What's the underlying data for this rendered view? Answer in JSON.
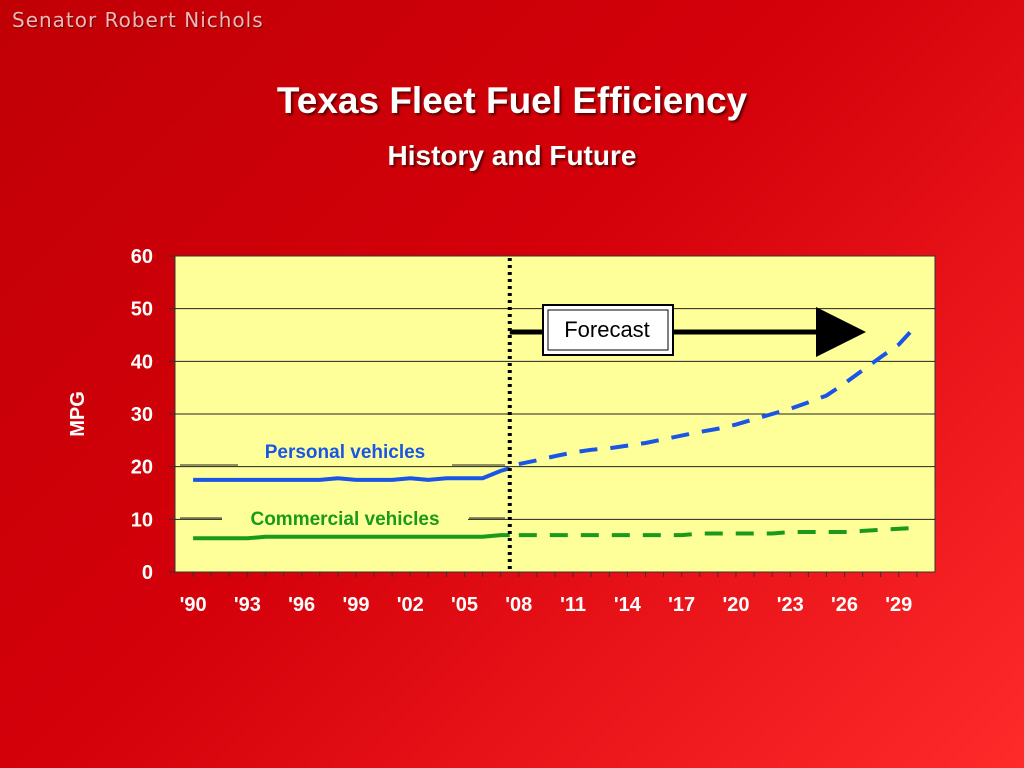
{
  "header": {
    "presenter": "Senator Robert Nichols"
  },
  "chart_data": {
    "type": "line",
    "title": "Texas Fleet Fuel Efficiency",
    "subtitle": "History and Future",
    "ylabel": "MPG",
    "xlabel": "",
    "ylim": [
      0,
      60
    ],
    "yticks": [
      0,
      10,
      20,
      30,
      40,
      50,
      60
    ],
    "xlim": [
      1989,
      2031
    ],
    "xtick_values": [
      1990,
      1993,
      1996,
      1999,
      2002,
      2005,
      2008,
      2011,
      2014,
      2017,
      2020,
      2023,
      2026,
      2029
    ],
    "xtick_labels": [
      "'90",
      "'93",
      "'96",
      "'99",
      "'02",
      "'05",
      "'08",
      "'11",
      "'14",
      "'17",
      "'20",
      "'23",
      "'26",
      "'29"
    ],
    "grid": true,
    "forecast_start": 2007.5,
    "forecast_label": "Forecast",
    "series": [
      {
        "name": "Personal vehicles",
        "color": "#1a55e6",
        "history": {
          "x": [
            1990,
            1991,
            1992,
            1993,
            1994,
            1995,
            1996,
            1997,
            1998,
            1999,
            2000,
            2001,
            2002,
            2003,
            2004,
            2005,
            2006,
            2007,
            2007.5
          ],
          "y": [
            17.5,
            17.5,
            17.5,
            17.5,
            17.5,
            17.5,
            17.5,
            17.5,
            17.8,
            17.5,
            17.5,
            17.5,
            17.8,
            17.5,
            17.8,
            17.8,
            17.8,
            19.2,
            19.7
          ]
        },
        "forecast": {
          "x": [
            2008,
            2009,
            2010,
            2011,
            2012,
            2013,
            2014,
            2015,
            2016,
            2017,
            2018,
            2019,
            2020,
            2021,
            2022,
            2023,
            2024,
            2025,
            2026,
            2027,
            2028,
            2029,
            2030
          ],
          "y": [
            20.5,
            21.2,
            22.0,
            22.7,
            23.2,
            23.5,
            24.0,
            24.5,
            25.2,
            25.9,
            26.6,
            27.2,
            28.0,
            29.0,
            30.0,
            31.0,
            32.2,
            33.5,
            35.8,
            38.3,
            40.8,
            43.2,
            46.9
          ]
        }
      },
      {
        "name": "Commercial vehicles",
        "color": "#1a9a1a",
        "history": {
          "x": [
            1990,
            1991,
            1992,
            1993,
            1994,
            1995,
            1996,
            1997,
            1998,
            1999,
            2000,
            2001,
            2002,
            2003,
            2004,
            2005,
            2006,
            2007,
            2007.5
          ],
          "y": [
            6.4,
            6.4,
            6.4,
            6.4,
            6.7,
            6.7,
            6.7,
            6.7,
            6.7,
            6.7,
            6.7,
            6.7,
            6.7,
            6.7,
            6.7,
            6.7,
            6.7,
            7.0,
            7.0
          ]
        },
        "forecast": {
          "x": [
            2008,
            2010,
            2012,
            2014,
            2016,
            2017,
            2018,
            2020,
            2022,
            2023,
            2024,
            2026,
            2027,
            2028,
            2030
          ],
          "y": [
            7.0,
            7.0,
            7.0,
            7.0,
            7.0,
            7.0,
            7.3,
            7.3,
            7.3,
            7.6,
            7.6,
            7.6,
            7.8,
            8.0,
            8.4
          ]
        }
      }
    ]
  }
}
